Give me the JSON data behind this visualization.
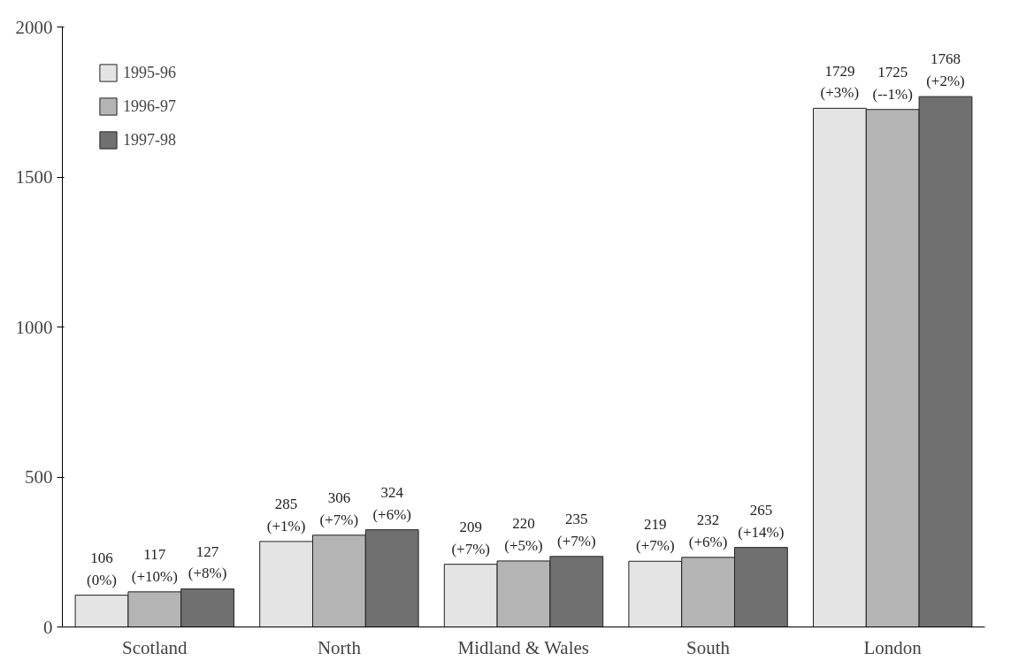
{
  "chart_data": {
    "type": "bar",
    "categories": [
      "Scotland",
      "North",
      "Midland & Wales",
      "South",
      "London"
    ],
    "series": [
      {
        "name": "1995-96",
        "color": "#e4e4e4",
        "values": [
          106,
          285,
          209,
          219,
          1729
        ],
        "value_labels": [
          "106\n(0%)",
          "285\n(+1%)",
          "209\n(+7%)",
          "219\n(+7%)",
          "1729\n(+3%)"
        ]
      },
      {
        "name": "1996-97",
        "color": "#b4b4b4",
        "values": [
          117,
          306,
          220,
          232,
          1725
        ],
        "value_labels": [
          "117\n(+10%)",
          "306\n(+7%)",
          "220\n(+5%)",
          "232\n(+6%)",
          "1725\n(--1%)"
        ]
      },
      {
        "name": "1997-98",
        "color": "#707070",
        "values": [
          127,
          324,
          235,
          265,
          1768
        ],
        "value_labels": [
          "127\n(+8%)",
          "324\n(+6%)",
          "235\n(+7%)",
          "265\n(+14%)",
          "1768\n(+2%)"
        ]
      }
    ],
    "ylim": [
      0,
      2000
    ],
    "yticks": [
      0,
      500,
      1000,
      1500,
      2000
    ],
    "grid": false,
    "legend": "top left"
  }
}
